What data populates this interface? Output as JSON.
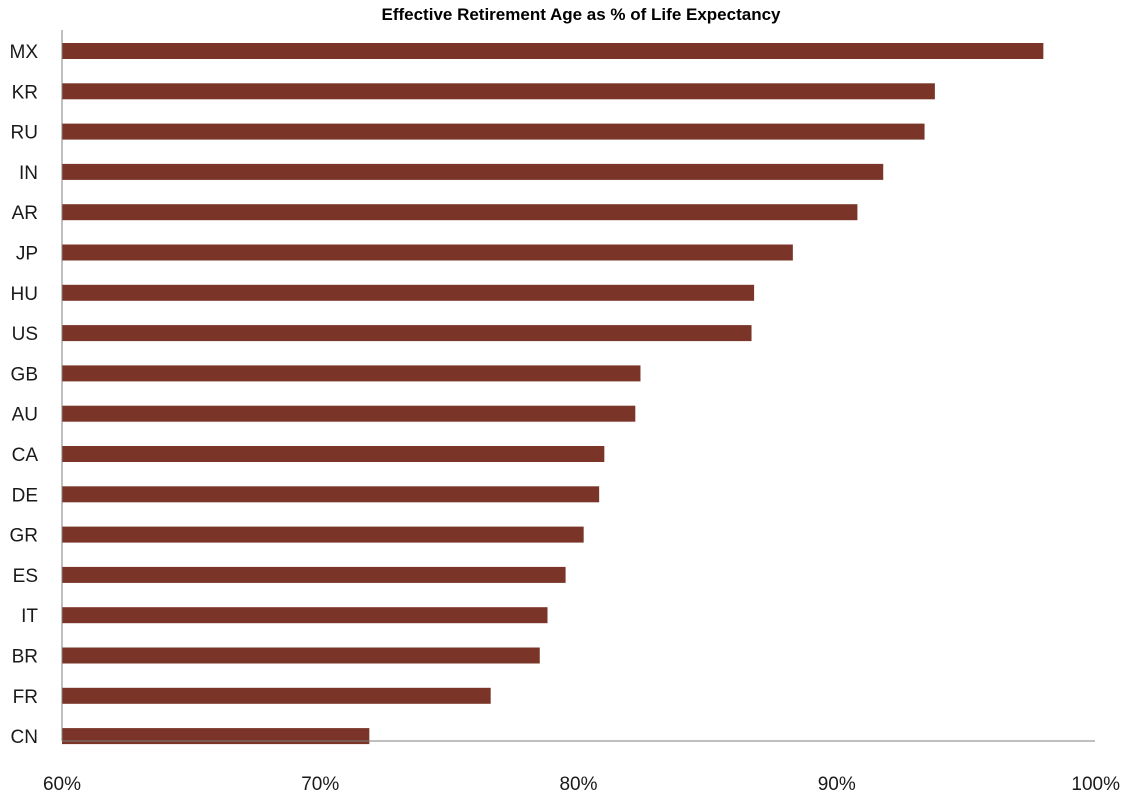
{
  "chart_data": {
    "type": "bar",
    "orientation": "horizontal",
    "title": "Effective Retirement Age as % of Life Expectancy",
    "xlabel": "",
    "ylabel": "",
    "categories": [
      "MX",
      "KR",
      "RU",
      "IN",
      "AR",
      "JP",
      "HU",
      "US",
      "GB",
      "AU",
      "CA",
      "DE",
      "GR",
      "ES",
      "IT",
      "BR",
      "FR",
      "CN"
    ],
    "values": [
      98.0,
      93.8,
      93.4,
      91.8,
      90.8,
      88.3,
      86.8,
      86.7,
      82.4,
      82.2,
      81.0,
      80.8,
      80.2,
      79.5,
      78.8,
      78.5,
      76.6,
      71.9
    ],
    "xlim": [
      60,
      100
    ],
    "xticks": [
      "60%",
      "70%",
      "80%",
      "90%",
      "100%"
    ],
    "xtick_values": [
      60,
      70,
      80,
      90,
      100
    ],
    "grid": false,
    "legend": "none",
    "colors": {
      "bar": "#7a3528",
      "axis": "#7f7f7f"
    }
  }
}
